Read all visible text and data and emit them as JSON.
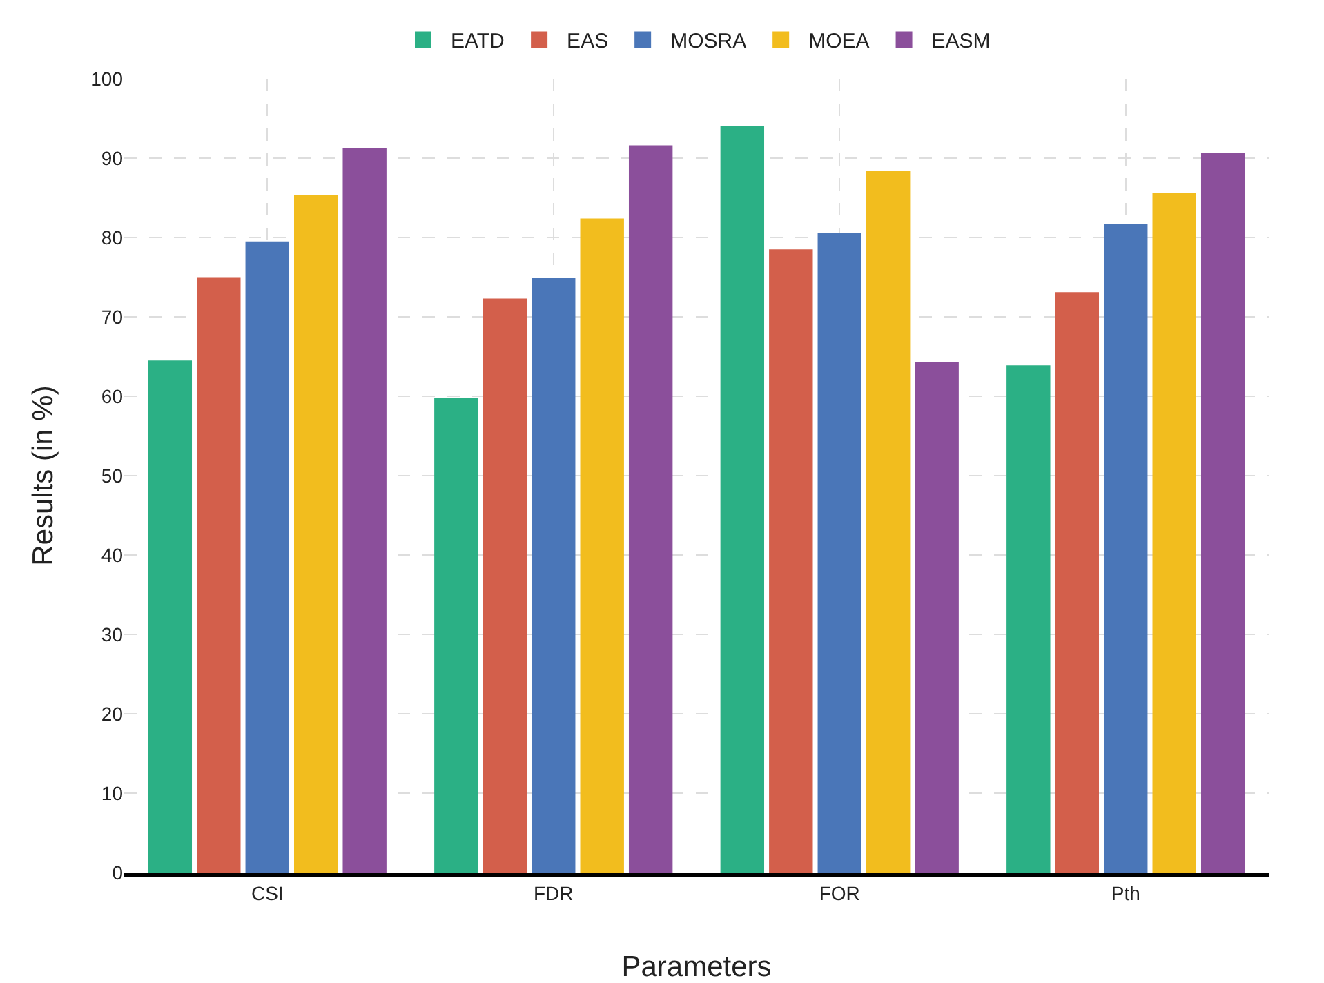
{
  "chart_data": {
    "type": "bar",
    "xlabel": "Parameters",
    "ylabel": "Results (in %)",
    "categories": [
      "CSI",
      "FDR",
      "FOR",
      "Pth"
    ],
    "series": [
      {
        "name": "EATD",
        "color": "#2bb085",
        "values": [
          64.5,
          59.8,
          94,
          63.9
        ]
      },
      {
        "name": "EAS",
        "color": "#d35f4b",
        "values": [
          75,
          72.3,
          78.5,
          73.1
        ]
      },
      {
        "name": "MOSRA",
        "color": "#4a76b8",
        "values": [
          79.5,
          74.9,
          80.6,
          81.7
        ]
      },
      {
        "name": "MOEA",
        "color": "#f2bd1e",
        "values": [
          85.3,
          82.4,
          88.4,
          85.6
        ]
      },
      {
        "name": "EASM",
        "color": "#8b4f9b",
        "values": [
          91.3,
          91.6,
          64.3,
          90.6
        ]
      }
    ],
    "ylim": [
      0,
      100
    ],
    "yticks": [
      0,
      10,
      20,
      30,
      40,
      50,
      60,
      70,
      80,
      90,
      100
    ],
    "grid": true,
    "legend": "top"
  }
}
